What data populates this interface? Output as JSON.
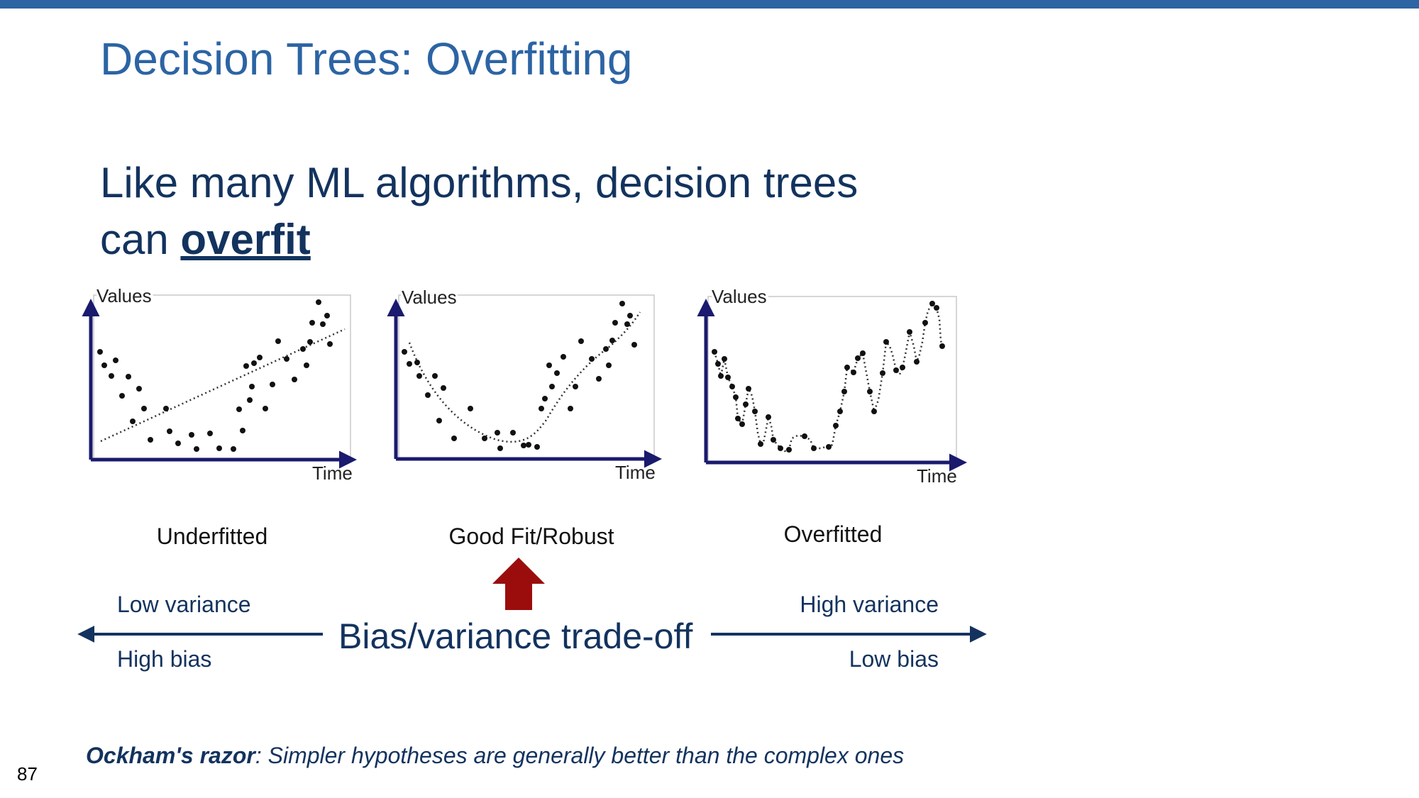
{
  "slide": {
    "title": "Decision Trees: Overfitting",
    "body_line1": "Like many ML algorithms, decision trees",
    "body_line2_prefix": "can ",
    "body_line2_emphasis": "overfit",
    "page_number": "87"
  },
  "panels": [
    {
      "y_axis_label": "Values",
      "x_axis_label": "Time",
      "caption": "Underfitted"
    },
    {
      "y_axis_label": "Values",
      "x_axis_label": "Time",
      "caption": "Good Fit/Robust"
    },
    {
      "y_axis_label": "Values",
      "x_axis_label": "Time",
      "caption": "Overfitted"
    }
  ],
  "tradeoff": {
    "center_label": "Bias/variance trade-off",
    "left_top": "Low variance",
    "left_bottom": "High bias",
    "right_top": "High variance",
    "right_bottom": "Low bias"
  },
  "note": {
    "term": "Ockham's razor",
    "text": ": Simpler hypotheses are generally better than the complex ones"
  },
  "colors": {
    "title": "#2c64a4",
    "text": "#13335e",
    "axis": "#1a1a6e",
    "arrow_up": "#9b0d0d"
  }
}
